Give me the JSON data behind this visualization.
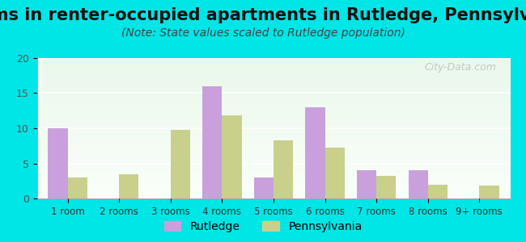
{
  "title": "Rooms in renter-occupied apartments in Rutledge, Pennsylvania",
  "subtitle": "(Note: State values scaled to Rutledge population)",
  "categories": [
    "1 room",
    "2 rooms",
    "3 rooms",
    "4 rooms",
    "5 rooms",
    "6 rooms",
    "7 rooms",
    "8 rooms",
    "9+ rooms"
  ],
  "rutledge_values": [
    10,
    0,
    0,
    16,
    3,
    13,
    4,
    4,
    0
  ],
  "pennsylvania_values": [
    3,
    3.4,
    9.8,
    11.8,
    8.3,
    7.2,
    3.2,
    2.0,
    1.8
  ],
  "rutledge_color": "#c9a0dc",
  "pennsylvania_color": "#c8d08c",
  "ylim": [
    0,
    20
  ],
  "yticks": [
    0,
    5,
    10,
    15,
    20
  ],
  "background_color": "#00e5e5",
  "plot_bg_start": "#f0fff0",
  "plot_bg_end": "#ffffff",
  "title_fontsize": 15,
  "subtitle_fontsize": 10,
  "watermark": "City-Data.com",
  "bar_width": 0.38,
  "legend_rutledge": "Rutledge",
  "legend_pennsylvania": "Pennsylvania"
}
